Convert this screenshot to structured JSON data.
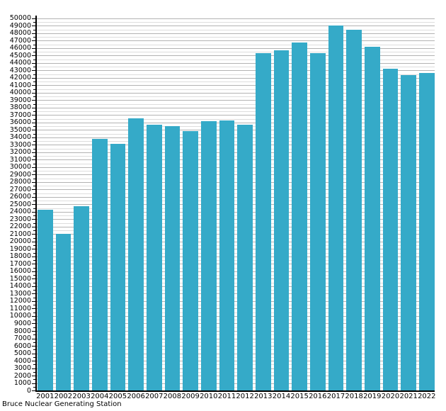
{
  "chart_data": {
    "type": "bar",
    "title": "Bruce Nuclear Generating Station",
    "title_position": "bottom-left",
    "categories": [
      "2001",
      "2002",
      "2003",
      "2004",
      "2005",
      "2006",
      "2007",
      "2008",
      "2009",
      "2010",
      "2011",
      "2012",
      "2013",
      "2014",
      "2015",
      "2016",
      "2017",
      "2018",
      "2019",
      "2020",
      "2021",
      "2022"
    ],
    "values": [
      24300,
      21000,
      24800,
      33800,
      33100,
      36600,
      35700,
      35500,
      34800,
      36200,
      36300,
      35700,
      45300,
      45700,
      46700,
      45300,
      49000,
      48500,
      46200,
      43200,
      42400,
      42600
    ],
    "xlabel": "",
    "ylabel": "",
    "ylim": [
      0,
      50000
    ],
    "y_major_step": 1000,
    "y_minor_step": 500,
    "y_tick_labels": [
      "0",
      "1000",
      "2000",
      "3000",
      "4000",
      "5000",
      "6000",
      "7000",
      "8000",
      "9000",
      "10000",
      "11000",
      "12000",
      "13000",
      "14000",
      "15000",
      "16000",
      "17000",
      "18000",
      "19000",
      "20000",
      "21000",
      "22000",
      "23000",
      "24000",
      "25000",
      "26000",
      "27000",
      "28000",
      "29000",
      "30000",
      "31000",
      "32000",
      "33000",
      "34000",
      "35000",
      "36000",
      "37000",
      "38000",
      "39000",
      "40000",
      "41000",
      "42000",
      "43000",
      "44000",
      "45000",
      "46000",
      "47000",
      "48000",
      "49000",
      "50000"
    ],
    "grid": "horizontal, major every 1000 and minor every 500",
    "legend": "none",
    "bar_color": "#35aac8"
  },
  "colors": {
    "background": "#ffffff",
    "bar": "#35aac8",
    "axis": "#000000",
    "major_grid": "#b3b3b3",
    "minor_grid": "#dddddd",
    "text": "#000000"
  }
}
